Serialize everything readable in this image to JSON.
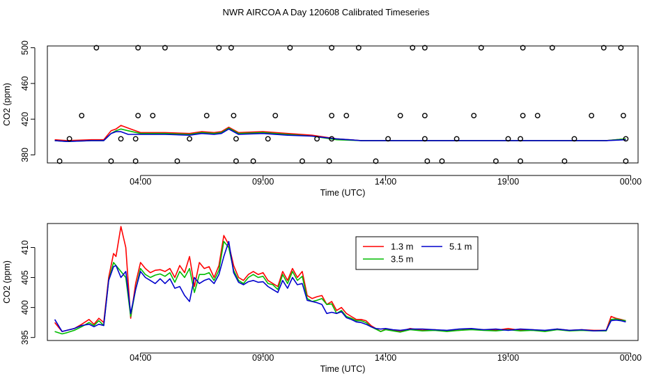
{
  "page": {
    "title": "NWR AIRCOA A  Day 120608  Calibrated Timeseries"
  },
  "chart_data": [
    {
      "type": "line",
      "name": "top",
      "xlabel": "Time (UTC)",
      "ylabel": "CO2 (ppm)",
      "xlim": [
        0.2,
        24.3
      ],
      "ylim": [
        371,
        502
      ],
      "xticks": [
        {
          "label": "04:00",
          "value": 4
        },
        {
          "label": "09:00",
          "value": 9
        },
        {
          "label": "14:00",
          "value": 14
        },
        {
          "label": "19:00",
          "value": 19
        },
        {
          "label": "00:00",
          "value": 24
        }
      ],
      "yticks": [
        {
          "label": "380",
          "value": 380
        },
        {
          "label": "420",
          "value": 420
        },
        {
          "label": "460",
          "value": 460
        },
        {
          "label": "500",
          "value": 500
        }
      ],
      "series": [
        {
          "name": "1.3 m",
          "color": "#ff0000",
          "x": [
            0.5,
            1,
            2,
            2.5,
            2.8,
            3,
            3.2,
            3.5,
            4,
            5,
            6,
            6.5,
            7,
            7.3,
            7.6,
            8,
            9,
            10,
            11,
            12,
            13,
            14,
            15,
            16,
            17,
            18,
            19,
            20,
            21,
            22,
            23,
            23.8
          ],
          "values": [
            397,
            396,
            397,
            397,
            407,
            409,
            413,
            410,
            405,
            405,
            404,
            406,
            405,
            406,
            411,
            405,
            406,
            404,
            402,
            398,
            396,
            396,
            396,
            396,
            396,
            396,
            396,
            396,
            396,
            396,
            396,
            398
          ]
        },
        {
          "name": "3.5 m",
          "color": "#00bb00",
          "x": [
            0.5,
            1,
            2,
            2.5,
            2.8,
            3,
            3.2,
            3.5,
            4,
            5,
            6,
            6.5,
            7,
            7.3,
            7.6,
            8,
            9,
            10,
            11,
            12,
            13,
            14,
            15,
            16,
            17,
            18,
            19,
            20,
            21,
            22,
            23,
            23.8
          ],
          "values": [
            396,
            395,
            396,
            396,
            404,
            407,
            409,
            407,
            404,
            404,
            403,
            405,
            404,
            405,
            410,
            404,
            405,
            403,
            401,
            397,
            396,
            396,
            396,
            396,
            396,
            396,
            396,
            396,
            396,
            396,
            396,
            398
          ]
        },
        {
          "name": "5.1 m",
          "color": "#0000cc",
          "x": [
            0.5,
            1,
            2,
            2.5,
            2.8,
            3,
            3.2,
            3.5,
            4,
            5,
            6,
            6.5,
            7,
            7.3,
            7.6,
            8,
            9,
            10,
            11,
            12,
            13,
            14,
            15,
            16,
            17,
            18,
            19,
            20,
            21,
            22,
            23,
            23.8
          ],
          "values": [
            396,
            395,
            396,
            396,
            404,
            406,
            406,
            403,
            403,
            403,
            402,
            404,
            403,
            404,
            409,
            403,
            404,
            402,
            401,
            398,
            396,
            396,
            396,
            396,
            396,
            396,
            396,
            396,
            396,
            396,
            396,
            397
          ]
        }
      ],
      "points": [
        {
          "x": 2.2,
          "y": 500
        },
        {
          "x": 3.9,
          "y": 500
        },
        {
          "x": 5.0,
          "y": 500
        },
        {
          "x": 7.2,
          "y": 500
        },
        {
          "x": 7.7,
          "y": 500
        },
        {
          "x": 10.1,
          "y": 500
        },
        {
          "x": 11.8,
          "y": 500
        },
        {
          "x": 12.9,
          "y": 500
        },
        {
          "x": 15.1,
          "y": 500
        },
        {
          "x": 15.6,
          "y": 500
        },
        {
          "x": 17.9,
          "y": 500
        },
        {
          "x": 19.6,
          "y": 500
        },
        {
          "x": 20.8,
          "y": 500
        },
        {
          "x": 22.9,
          "y": 500
        },
        {
          "x": 23.6,
          "y": 500
        },
        {
          "x": 1.6,
          "y": 424
        },
        {
          "x": 3.9,
          "y": 424
        },
        {
          "x": 4.5,
          "y": 424
        },
        {
          "x": 6.7,
          "y": 424
        },
        {
          "x": 7.8,
          "y": 424
        },
        {
          "x": 9.5,
          "y": 424
        },
        {
          "x": 11.8,
          "y": 424
        },
        {
          "x": 12.4,
          "y": 424
        },
        {
          "x": 14.6,
          "y": 424
        },
        {
          "x": 15.6,
          "y": 424
        },
        {
          "x": 17.6,
          "y": 424
        },
        {
          "x": 19.6,
          "y": 424
        },
        {
          "x": 20.2,
          "y": 424
        },
        {
          "x": 22.4,
          "y": 424
        },
        {
          "x": 23.7,
          "y": 424
        },
        {
          "x": 1.1,
          "y": 398
        },
        {
          "x": 3.2,
          "y": 398
        },
        {
          "x": 3.8,
          "y": 398
        },
        {
          "x": 6.0,
          "y": 398
        },
        {
          "x": 7.9,
          "y": 398
        },
        {
          "x": 9.2,
          "y": 398
        },
        {
          "x": 11.2,
          "y": 398
        },
        {
          "x": 11.8,
          "y": 398
        },
        {
          "x": 14.1,
          "y": 398
        },
        {
          "x": 15.6,
          "y": 398
        },
        {
          "x": 16.9,
          "y": 398
        },
        {
          "x": 19.0,
          "y": 398
        },
        {
          "x": 19.5,
          "y": 398
        },
        {
          "x": 21.7,
          "y": 398
        },
        {
          "x": 23.8,
          "y": 398
        },
        {
          "x": 0.7,
          "y": 373
        },
        {
          "x": 2.8,
          "y": 373
        },
        {
          "x": 3.8,
          "y": 373
        },
        {
          "x": 5.5,
          "y": 373
        },
        {
          "x": 7.9,
          "y": 373
        },
        {
          "x": 8.6,
          "y": 373
        },
        {
          "x": 10.6,
          "y": 373
        },
        {
          "x": 11.7,
          "y": 373
        },
        {
          "x": 13.6,
          "y": 373
        },
        {
          "x": 15.7,
          "y": 373
        },
        {
          "x": 16.3,
          "y": 373
        },
        {
          "x": 18.5,
          "y": 373
        },
        {
          "x": 19.5,
          "y": 373
        },
        {
          "x": 21.3,
          "y": 373
        },
        {
          "x": 23.8,
          "y": 373
        }
      ]
    },
    {
      "type": "line",
      "name": "bottom",
      "xlabel": "Time (UTC)",
      "ylabel": "CO2 (ppm)",
      "xlim": [
        0.2,
        24.3
      ],
      "ylim": [
        394.5,
        414
      ],
      "xticks": [
        {
          "label": "04:00",
          "value": 4
        },
        {
          "label": "09:00",
          "value": 9
        },
        {
          "label": "14:00",
          "value": 14
        },
        {
          "label": "19:00",
          "value": 19
        },
        {
          "label": "00:00",
          "value": 24
        }
      ],
      "yticks": [
        {
          "label": "395",
          "value": 395
        },
        {
          "label": "400",
          "value": 400
        },
        {
          "label": "405",
          "value": 405
        },
        {
          "label": "410",
          "value": 410
        }
      ],
      "legend": {
        "position": "top-center",
        "entries": [
          "1.3 m",
          "3.5 m",
          "5.1 m"
        ]
      },
      "series": [
        {
          "name": "1.3 m",
          "color": "#ff0000",
          "x": [
            0.5,
            0.8,
            1.0,
            1.3,
            1.6,
            1.9,
            2.1,
            2.3,
            2.5,
            2.7,
            2.9,
            3.0,
            3.2,
            3.4,
            3.6,
            3.8,
            4.0,
            4.2,
            4.4,
            4.6,
            4.8,
            5.0,
            5.2,
            5.4,
            5.6,
            5.8,
            6.0,
            6.2,
            6.4,
            6.6,
            6.8,
            7.0,
            7.2,
            7.4,
            7.6,
            7.8,
            8.0,
            8.2,
            8.4,
            8.6,
            8.8,
            9.0,
            9.2,
            9.4,
            9.6,
            9.8,
            10.0,
            10.2,
            10.4,
            10.6,
            10.8,
            11.0,
            11.2,
            11.4,
            11.6,
            11.8,
            12.0,
            12.2,
            12.4,
            12.6,
            12.8,
            13.0,
            13.2,
            13.4,
            13.6,
            13.8,
            14.0,
            14.3,
            14.6,
            15.0,
            15.5,
            16.0,
            16.5,
            17.0,
            17.5,
            18.0,
            18.5,
            19.0,
            19.5,
            20.0,
            20.5,
            21.0,
            21.5,
            22.0,
            22.5,
            23.0,
            23.2,
            23.4,
            23.6,
            23.8
          ],
          "values": [
            397.5,
            396,
            396.2,
            396.5,
            397.2,
            398,
            397.2,
            398.2,
            397.5,
            405,
            409,
            408.5,
            413.5,
            410,
            398.2,
            404,
            407.5,
            406.5,
            405.8,
            406.2,
            406.3,
            406,
            406.5,
            405,
            407,
            405.8,
            408.5,
            403.5,
            407.5,
            406.5,
            406.8,
            405,
            407,
            412,
            410.5,
            407,
            405,
            404.5,
            405.5,
            406,
            405.5,
            405.8,
            404.5,
            404,
            403.5,
            406,
            404.5,
            406.5,
            405,
            406,
            402,
            401.5,
            401.8,
            402,
            400.5,
            401,
            399.5,
            400,
            399,
            398.5,
            398,
            398,
            397.8,
            397,
            396.5,
            396,
            396.4,
            396.2,
            396,
            396.5,
            396.2,
            396.3,
            396.1,
            396.2,
            396.4,
            396.3,
            396.2,
            396.5,
            396.2,
            396.3,
            396.1,
            396.4,
            396.2,
            396.3,
            396.2,
            396.2,
            398.5,
            398.2,
            398,
            397.8
          ]
        },
        {
          "name": "3.5 m",
          "color": "#00bb00",
          "x": [
            0.5,
            0.8,
            1.0,
            1.3,
            1.6,
            1.9,
            2.1,
            2.3,
            2.5,
            2.7,
            2.9,
            3.0,
            3.2,
            3.4,
            3.6,
            3.8,
            4.0,
            4.2,
            4.4,
            4.6,
            4.8,
            5.0,
            5.2,
            5.4,
            5.6,
            5.8,
            6.0,
            6.2,
            6.4,
            6.6,
            6.8,
            7.0,
            7.2,
            7.4,
            7.6,
            7.8,
            8.0,
            8.2,
            8.4,
            8.6,
            8.8,
            9.0,
            9.2,
            9.4,
            9.6,
            9.8,
            10.0,
            10.2,
            10.4,
            10.6,
            10.8,
            11.0,
            11.2,
            11.4,
            11.6,
            11.8,
            12.0,
            12.2,
            12.4,
            12.6,
            12.8,
            13.0,
            13.2,
            13.4,
            13.6,
            13.8,
            14.0,
            14.3,
            14.6,
            15.0,
            15.5,
            16.0,
            16.5,
            17.0,
            17.5,
            18.0,
            18.5,
            19.0,
            19.5,
            20.0,
            20.5,
            21.0,
            21.5,
            22.0,
            22.5,
            23.0,
            23.2,
            23.4,
            23.6,
            23.8
          ],
          "values": [
            396,
            395.6,
            395.8,
            396.2,
            396.8,
            397.5,
            397,
            397.8,
            397,
            404.5,
            407.5,
            407,
            406,
            405,
            398.5,
            403,
            406.5,
            405.5,
            405,
            405.4,
            405.6,
            405.2,
            405.8,
            404.2,
            406,
            405,
            406.5,
            402.5,
            405.5,
            405.5,
            405.8,
            404.5,
            406.2,
            411,
            410,
            406.2,
            404.5,
            404,
            405,
            405.5,
            405,
            405.2,
            404,
            403.8,
            403,
            405.5,
            404,
            406,
            404.5,
            405.2,
            401.5,
            401,
            401.2,
            401.5,
            400.5,
            400.6,
            399,
            399.5,
            398.5,
            398.2,
            397.8,
            397.8,
            397.5,
            396.8,
            396.4,
            396,
            396.3,
            396.1,
            395.9,
            396.3,
            396.1,
            396.2,
            396,
            396.2,
            396.3,
            396.2,
            396.1,
            396.3,
            396.1,
            396.2,
            396,
            396.3,
            396.1,
            396.2,
            396.1,
            396.1,
            398,
            398.1,
            397.9,
            397.8
          ]
        },
        {
          "name": "5.1 m",
          "color": "#0000cc",
          "x": [
            0.5,
            0.8,
            1.0,
            1.3,
            1.6,
            1.9,
            2.1,
            2.3,
            2.5,
            2.7,
            2.9,
            3.0,
            3.2,
            3.4,
            3.6,
            3.8,
            4.0,
            4.2,
            4.4,
            4.6,
            4.8,
            5.0,
            5.2,
            5.4,
            5.6,
            5.8,
            6.0,
            6.2,
            6.4,
            6.6,
            6.8,
            7.0,
            7.2,
            7.4,
            7.6,
            7.8,
            8.0,
            8.2,
            8.4,
            8.6,
            8.8,
            9.0,
            9.2,
            9.4,
            9.6,
            9.8,
            10.0,
            10.2,
            10.4,
            10.6,
            10.8,
            11.0,
            11.2,
            11.4,
            11.6,
            11.8,
            12.0,
            12.2,
            12.4,
            12.6,
            12.8,
            13.0,
            13.2,
            13.4,
            13.6,
            13.8,
            14.0,
            14.3,
            14.6,
            15.0,
            15.5,
            16.0,
            16.5,
            17.0,
            17.5,
            18.0,
            18.5,
            19.0,
            19.5,
            20.0,
            20.5,
            21.0,
            21.5,
            22.0,
            22.5,
            23.0,
            23.2,
            23.4,
            23.6,
            23.8
          ],
          "values": [
            398,
            396,
            396.2,
            396.5,
            397,
            397.2,
            396.8,
            397.2,
            397,
            404.5,
            406.8,
            407,
            405,
            406,
            399,
            403,
            406,
            405,
            404.5,
            404,
            404.8,
            404,
            404.8,
            403.2,
            403.5,
            402,
            401,
            405,
            404,
            404.5,
            404.8,
            404,
            405.5,
            408.5,
            411,
            405.8,
            404.2,
            403.8,
            404.3,
            404.5,
            404.2,
            404.3,
            403.5,
            403,
            402.5,
            404.5,
            403.2,
            405,
            403.8,
            404,
            401.2,
            401,
            400.8,
            400.5,
            399,
            399.2,
            399,
            399.3,
            398.3,
            398,
            397.6,
            397.5,
            397.2,
            396.8,
            396.5,
            396.4,
            396.5,
            396.3,
            396.2,
            396.4,
            396.4,
            396.3,
            396.2,
            396.4,
            396.5,
            396.3,
            396.4,
            396.2,
            396.4,
            396.3,
            396.2,
            396.4,
            396.2,
            396.3,
            396.1,
            396.2,
            397.8,
            397.9,
            397.8,
            397.6
          ]
        }
      ]
    }
  ]
}
